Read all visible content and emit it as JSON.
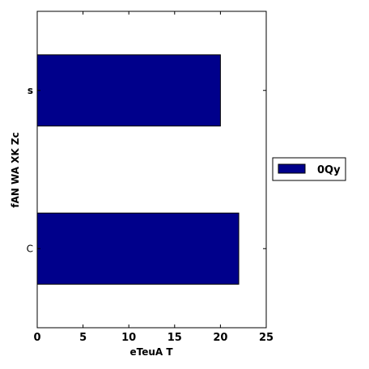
{
  "chart_data": {
    "type": "bar",
    "orientation": "horizontal",
    "categories": [
      "C",
      "s"
    ],
    "series": [
      {
        "name": "0Qy",
        "values": [
          22,
          20
        ],
        "color": "#00008b"
      }
    ],
    "xlabel": "eTeuA T",
    "ylabel": "fAN WA XK Zc",
    "xlim": [
      0,
      25
    ],
    "xticks": [
      0,
      5,
      10,
      15,
      20,
      25
    ],
    "grid": false,
    "legend_position": "right"
  }
}
